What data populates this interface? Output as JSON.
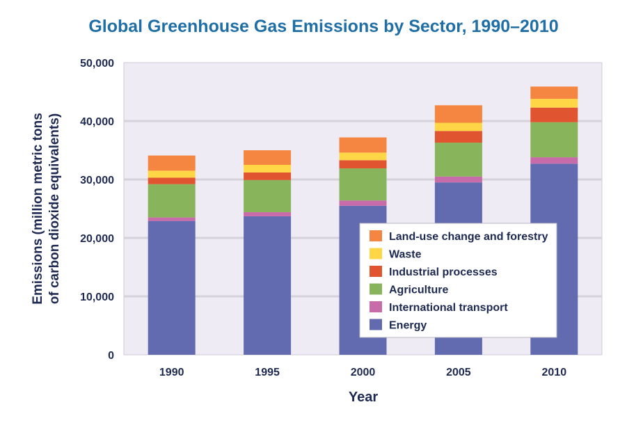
{
  "chart_data": {
    "type": "bar",
    "stacked": true,
    "title": "Global Greenhouse Gas Emissions by Sector, 1990–2010",
    "xlabel": "Year",
    "ylabel_lines": [
      "Emissions (million metric tons",
      "of carbon dioxide equivalents)"
    ],
    "ylim": [
      0,
      50000
    ],
    "yticks": [
      0,
      10000,
      20000,
      30000,
      40000,
      50000
    ],
    "ytick_labels": [
      "0",
      "10,000",
      "20,000",
      "30,000",
      "40,000",
      "50,000"
    ],
    "categories": [
      "1990",
      "1995",
      "2000",
      "2005",
      "2010"
    ],
    "legend_position": "center-right",
    "grid": true,
    "series": [
      {
        "name": "Energy",
        "color": "#626bb0",
        "values": [
          22900,
          23700,
          25500,
          29500,
          32700
        ]
      },
      {
        "name": "International transport",
        "color": "#c76ca8",
        "values": [
          600,
          700,
          900,
          1000,
          1100
        ]
      },
      {
        "name": "Agriculture",
        "color": "#88b45c",
        "values": [
          5700,
          5500,
          5500,
          5800,
          6000
        ]
      },
      {
        "name": "Industrial processes",
        "color": "#e05530",
        "values": [
          1100,
          1300,
          1400,
          2000,
          2500
        ]
      },
      {
        "name": "Waste",
        "color": "#ffd646",
        "values": [
          1200,
          1300,
          1300,
          1400,
          1500
        ]
      },
      {
        "name": "Land-use change and forestry",
        "color": "#f48642",
        "values": [
          2600,
          2500,
          2600,
          3000,
          2100
        ]
      }
    ]
  }
}
